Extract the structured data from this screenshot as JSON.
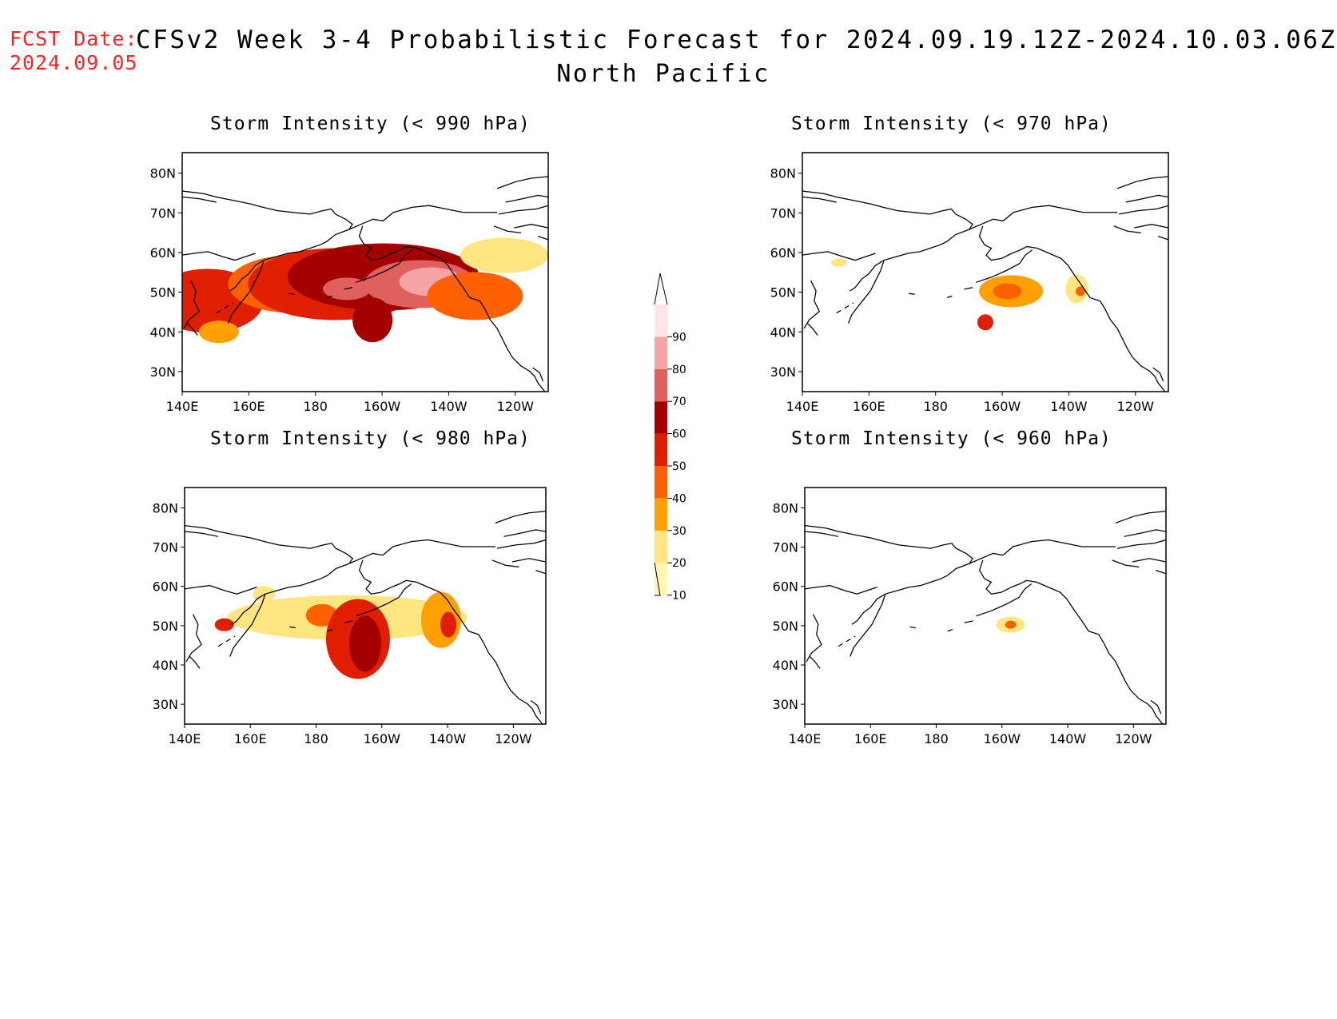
{
  "header": {
    "fcst_label": "FCST Date:",
    "fcst_date": "2024.09.05",
    "title": "CFSv2 Week 3-4 Probabilistic Forecast for 2024.09.19.12Z-2024.10.03.06Z",
    "subtitle": "North Pacific"
  },
  "panels": [
    {
      "id": "p990",
      "title": "Storm Intensity (< 990 hPa)"
    },
    {
      "id": "p970",
      "title": "Storm Intensity (< 970 hPa)"
    },
    {
      "id": "p980",
      "title": "Storm Intensity (< 980 hPa)"
    },
    {
      "id": "p960",
      "title": "Storm Intensity (< 960 hPa)"
    }
  ],
  "axes": {
    "lat_labels": [
      "80N",
      "70N",
      "60N",
      "50N",
      "40N",
      "30N"
    ],
    "lon_labels": [
      "140E",
      "160E",
      "180",
      "160W",
      "140W",
      "120W"
    ]
  },
  "colorbar": {
    "levels": [
      "10",
      "20",
      "30",
      "40",
      "50",
      "60",
      "70",
      "80",
      "90"
    ],
    "colors": [
      "#fff7b3",
      "#ffe680",
      "#ffa000",
      "#ff6000",
      "#e01e00",
      "#a50000",
      "#e06060",
      "#f4a4a4",
      "#ffe6e6"
    ]
  }
}
